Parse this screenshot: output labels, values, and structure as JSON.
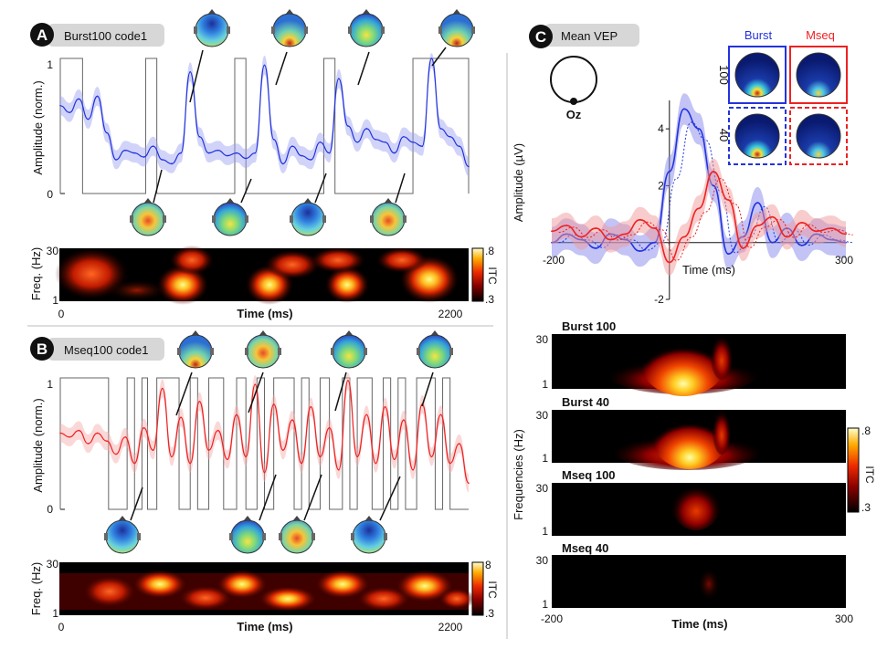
{
  "panels": {
    "a": {
      "letter": "A",
      "title": "Burst100 code1",
      "ylabel": "Amplitude (norm.)",
      "y_ticks": [
        "0",
        "1"
      ],
      "freq_label": "Freq. (Hz)",
      "freq_ticks": [
        "30",
        "1"
      ],
      "time_label": "Time (ms)",
      "time_ticks": [
        "0",
        "2200"
      ],
      "colorbar_label": "ITC",
      "colorbar_ticks": [
        ".8",
        ".3"
      ]
    },
    "b": {
      "letter": "B",
      "title": "Mseq100 code1",
      "ylabel": "Amplitude (norm.)",
      "y_ticks": [
        "0",
        "1"
      ],
      "freq_label": "Freq. (Hz)",
      "freq_ticks": [
        "30",
        "1"
      ],
      "time_label": "Time (ms)",
      "time_ticks": [
        "0",
        "2200"
      ],
      "colorbar_label": "ITC",
      "colorbar_ticks": [
        "8",
        ".3"
      ]
    },
    "c": {
      "letter": "C",
      "title": "Mean VEP",
      "electrode": "Oz",
      "ylabel": "Amplitude (µV)",
      "y_ticks": [
        "4",
        "2",
        "-2"
      ],
      "x_ticks": [
        "-200",
        "300"
      ],
      "time_label": "Time (ms)",
      "col_labels": [
        "Burst",
        "Mseq"
      ],
      "row_labels": [
        "100",
        "40"
      ],
      "tf_titles": [
        "Burst 100",
        "Burst 40",
        "Mseq 100",
        "Mseq 40"
      ],
      "tf_ylabel": "Frequencies (Hz)",
      "tf_yticks": [
        "30",
        "1"
      ],
      "tf_xticks": [
        "-200",
        "300"
      ],
      "tf_time_label": "Time (ms)",
      "colorbar_label": "ITC",
      "colorbar_ticks": [
        ".8",
        ".3"
      ]
    }
  },
  "colors": {
    "burst": "#2233dd",
    "mseq": "#ee2222",
    "badge": "#111111",
    "title_box": "#d7d7d7",
    "stim": "#555555"
  },
  "chart_data": [
    {
      "type": "line",
      "panel": "A",
      "title": "Burst100 code1",
      "ylabel": "Amplitude (norm.)",
      "xlabel": "Time (ms)",
      "xlim": [
        0,
        2200
      ],
      "ylim": [
        0,
        1
      ],
      "series": [
        {
          "x": [
            0,
            50,
            100,
            150,
            200,
            250,
            300,
            350,
            400,
            450,
            500,
            550,
            600,
            650,
            700,
            750,
            800,
            850,
            900,
            950,
            1000,
            1050,
            1100,
            1150,
            1200,
            1250,
            1300,
            1350,
            1400,
            1450,
            1500,
            1550,
            1600,
            1650,
            1700,
            1750,
            1800,
            1850,
            1900,
            1950,
            2000,
            2050,
            2100,
            2150,
            2200
          ],
          "y": [
            0.65,
            0.6,
            0.7,
            0.55,
            0.72,
            0.45,
            0.25,
            0.32,
            0.3,
            0.27,
            0.35,
            0.25,
            0.22,
            0.3,
            0.9,
            0.42,
            0.3,
            0.32,
            0.28,
            0.3,
            0.26,
            0.3,
            0.95,
            0.4,
            0.22,
            0.35,
            0.28,
            0.25,
            0.38,
            0.3,
            0.85,
            0.5,
            0.38,
            0.48,
            0.4,
            0.38,
            0.3,
            0.42,
            0.38,
            0.35,
            1.0,
            0.48,
            0.42,
            0.35,
            0.2
          ]
        }
      ]
    },
    {
      "type": "line",
      "panel": "B",
      "title": "Mseq100 code1",
      "ylabel": "Amplitude (norm.)",
      "xlabel": "Time (ms)",
      "xlim": [
        0,
        2200
      ],
      "ylim": [
        0,
        1
      ],
      "series": [
        {
          "x": [
            0,
            50,
            100,
            150,
            200,
            250,
            300,
            350,
            400,
            450,
            500,
            550,
            600,
            650,
            700,
            750,
            800,
            850,
            900,
            950,
            1000,
            1050,
            1100,
            1150,
            1200,
            1250,
            1300,
            1350,
            1400,
            1450,
            1500,
            1550,
            1600,
            1650,
            1700,
            1750,
            1800,
            1850,
            1900,
            1950,
            2000,
            2050,
            2100,
            2150,
            2200
          ],
          "y": [
            0.58,
            0.55,
            0.6,
            0.5,
            0.58,
            0.52,
            0.42,
            0.55,
            0.35,
            0.62,
            0.45,
            0.92,
            0.4,
            0.7,
            0.35,
            0.82,
            0.45,
            0.6,
            0.38,
            0.72,
            0.4,
            0.95,
            0.28,
            0.8,
            0.45,
            0.68,
            0.35,
            0.78,
            0.4,
            0.62,
            0.3,
            0.98,
            0.4,
            0.72,
            0.35,
            0.78,
            0.38,
            0.68,
            0.3,
            0.8,
            0.4,
            0.72,
            0.35,
            0.5,
            0.2
          ]
        }
      ]
    },
    {
      "type": "line",
      "panel": "C",
      "title": "Mean VEP",
      "ylabel": "Amplitude (µV)",
      "xlabel": "Time (ms)",
      "xlim": [
        -200,
        300
      ],
      "ylim": [
        -2,
        5
      ],
      "series": [
        {
          "name": "Burst",
          "x": [
            -200,
            -175,
            -150,
            -125,
            -100,
            -75,
            -50,
            -25,
            0,
            25,
            50,
            75,
            100,
            125,
            150,
            175,
            200,
            225,
            250,
            275,
            300
          ],
          "y": [
            0.0,
            0.3,
            0.1,
            -0.2,
            0.3,
            0.1,
            -0.3,
            0.0,
            2.5,
            4.7,
            4.0,
            2.0,
            -0.4,
            0.2,
            1.4,
            0.0,
            0.5,
            -0.1,
            0.3,
            0.1,
            0.0
          ]
        },
        {
          "name": "Mseq",
          "x": [
            -200,
            -175,
            -150,
            -125,
            -100,
            -75,
            -50,
            -25,
            0,
            25,
            50,
            75,
            100,
            125,
            150,
            175,
            200,
            225,
            250,
            275,
            300
          ],
          "y": [
            0.4,
            0.6,
            0.2,
            0.5,
            0.1,
            0.3,
            0.8,
            0.5,
            -0.7,
            0.2,
            1.2,
            2.5,
            1.5,
            -0.2,
            0.6,
            0.9,
            0.2,
            0.7,
            0.4,
            0.5,
            0.3
          ]
        }
      ]
    }
  ]
}
